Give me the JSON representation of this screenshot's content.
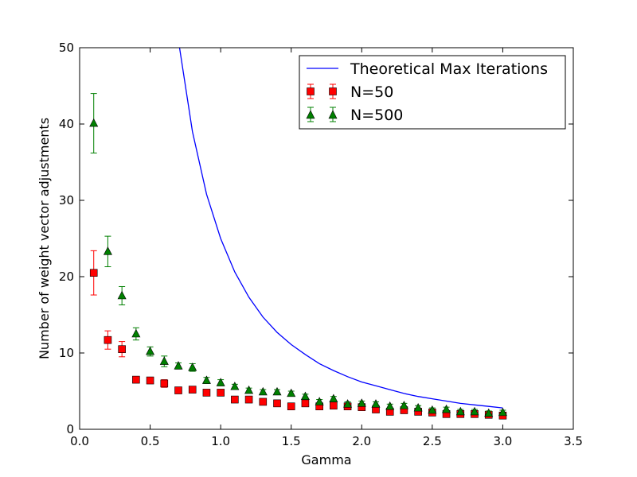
{
  "chart_data": {
    "type": "scatter",
    "title": "",
    "xlabel": "Gamma",
    "ylabel": "Number of weight vector adjustments",
    "xlim": [
      0.0,
      3.5
    ],
    "ylim": [
      0,
      50
    ],
    "xticks": [
      0.0,
      0.5,
      1.0,
      1.5,
      2.0,
      2.5,
      3.0,
      3.5
    ],
    "xtick_labels": [
      "0.0",
      "0.5",
      "1.0",
      "1.5",
      "2.0",
      "2.5",
      "3.0",
      "3.5"
    ],
    "yticks": [
      0,
      10,
      20,
      30,
      40,
      50
    ],
    "ytick_labels": [
      "0",
      "10",
      "20",
      "30",
      "40",
      "50"
    ],
    "grid": false,
    "legend": {
      "position": "top-right",
      "entries": [
        "Theoretical Max Iterations",
        "N=50",
        "N=500"
      ]
    },
    "series": [
      {
        "name": "Theoretical Max Iterations",
        "kind": "line",
        "color": "#0000ff",
        "x": [
          0.7,
          0.8,
          0.9,
          1.0,
          1.1,
          1.2,
          1.3,
          1.4,
          1.5,
          1.6,
          1.7,
          1.8,
          1.9,
          2.0,
          2.1,
          2.2,
          2.3,
          2.4,
          2.5,
          2.6,
          2.7,
          2.8,
          2.9,
          3.0
        ],
        "y": [
          51.0,
          39.0,
          30.8,
          25.0,
          20.6,
          17.3,
          14.7,
          12.7,
          11.1,
          9.8,
          8.6,
          7.7,
          6.9,
          6.2,
          5.7,
          5.2,
          4.7,
          4.3,
          4.0,
          3.7,
          3.4,
          3.2,
          3.0,
          2.8
        ]
      },
      {
        "name": "N=50",
        "kind": "errorbar",
        "marker": "square",
        "color": "#ff0000",
        "x": [
          0.1,
          0.2,
          0.3,
          0.4,
          0.5,
          0.6,
          0.7,
          0.8,
          0.9,
          1.0,
          1.1,
          1.2,
          1.3,
          1.4,
          1.5,
          1.6,
          1.7,
          1.8,
          1.9,
          2.0,
          2.1,
          2.2,
          2.3,
          2.4,
          2.5,
          2.6,
          2.7,
          2.8,
          2.9,
          3.0
        ],
        "y": [
          20.5,
          11.7,
          10.5,
          6.5,
          6.4,
          6.0,
          5.1,
          5.2,
          4.8,
          4.8,
          3.9,
          3.9,
          3.6,
          3.4,
          3.0,
          3.4,
          3.0,
          3.1,
          3.0,
          2.9,
          2.6,
          2.3,
          2.5,
          2.3,
          2.2,
          2.0,
          2.0,
          2.0,
          1.9,
          1.8
        ],
        "err": [
          2.9,
          1.2,
          1.0,
          0.4,
          0.4,
          0.5,
          0.3,
          0.3,
          0.3,
          0.3,
          0.3,
          0.3,
          0.3,
          0.3,
          0.3,
          0.3,
          0.3,
          0.3,
          0.3,
          0.3,
          0.3,
          0.3,
          0.3,
          0.3,
          0.3,
          0.3,
          0.3,
          0.3,
          0.3,
          0.3
        ]
      },
      {
        "name": "N=500",
        "kind": "errorbar",
        "marker": "triangle",
        "color": "#008000",
        "x": [
          0.1,
          0.2,
          0.3,
          0.4,
          0.5,
          0.6,
          0.7,
          0.8,
          0.9,
          1.0,
          1.1,
          1.2,
          1.3,
          1.4,
          1.5,
          1.6,
          1.7,
          1.8,
          1.9,
          2.0,
          2.1,
          2.2,
          2.3,
          2.4,
          2.5,
          2.6,
          2.7,
          2.8,
          2.9,
          3.0
        ],
        "y": [
          40.1,
          23.3,
          17.5,
          12.5,
          10.2,
          8.9,
          8.3,
          8.1,
          6.4,
          6.1,
          5.6,
          5.1,
          4.9,
          4.9,
          4.7,
          4.3,
          3.6,
          4.0,
          3.3,
          3.4,
          3.3,
          3.0,
          3.1,
          2.8,
          2.5,
          2.6,
          2.3,
          2.3,
          2.1,
          2.2
        ],
        "err": [
          3.9,
          2.0,
          1.2,
          0.8,
          0.6,
          0.7,
          0.4,
          0.5,
          0.4,
          0.4,
          0.3,
          0.3,
          0.3,
          0.3,
          0.3,
          0.3,
          0.3,
          0.3,
          0.3,
          0.3,
          0.3,
          0.3,
          0.3,
          0.3,
          0.3,
          0.3,
          0.3,
          0.3,
          0.3,
          0.3
        ]
      }
    ]
  }
}
